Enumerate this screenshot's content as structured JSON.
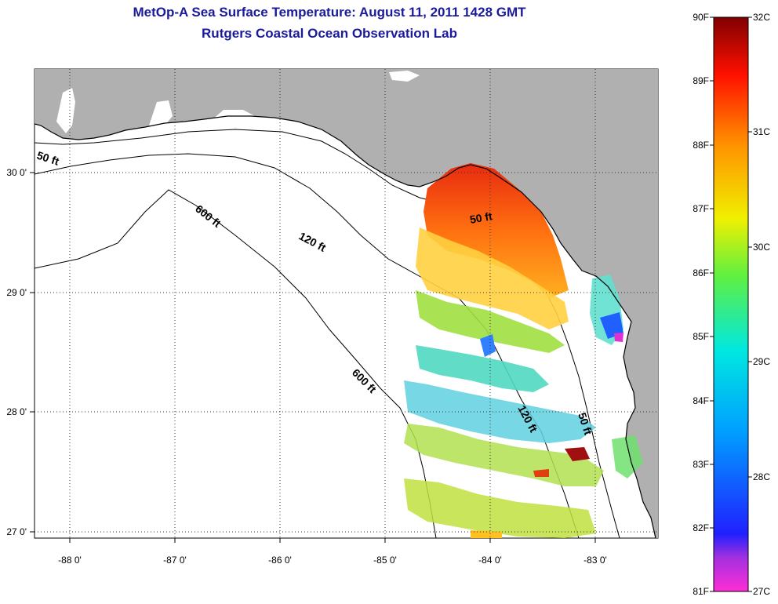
{
  "title": {
    "line1": "MetOp-A Sea Surface Temperature:  August 11, 2011 1428 GMT",
    "line2": "Rutgers Coastal Ocean Observation Lab"
  },
  "map": {
    "lon_ticks": [
      "-88 0'",
      "-87 0'",
      "-86 0'",
      "-85 0'",
      "-84 0'",
      "-83 0'"
    ],
    "lat_ticks": [
      "30 0'",
      "29 0'",
      "28 0'",
      "27 0'"
    ],
    "contour_labels": {
      "c50a": "50 ft",
      "c50b": "50 ft",
      "c50c": "50 ft",
      "c120a": "120 ft",
      "c120b": "120 ft",
      "c600a": "600 ft",
      "c600b": "600 ft"
    },
    "land_color": "#b0b0b0",
    "gridlines": "dotted"
  },
  "colorbar": {
    "fahrenheit": [
      "90F",
      "89F",
      "88F",
      "87F",
      "86F",
      "85F",
      "84F",
      "83F",
      "82F",
      "81F"
    ],
    "celsius": [
      "32C",
      "31C",
      "30C",
      "29C",
      "28C",
      "27C"
    ],
    "range_F": [
      81,
      90
    ],
    "range_C": [
      27,
      32
    ]
  }
}
